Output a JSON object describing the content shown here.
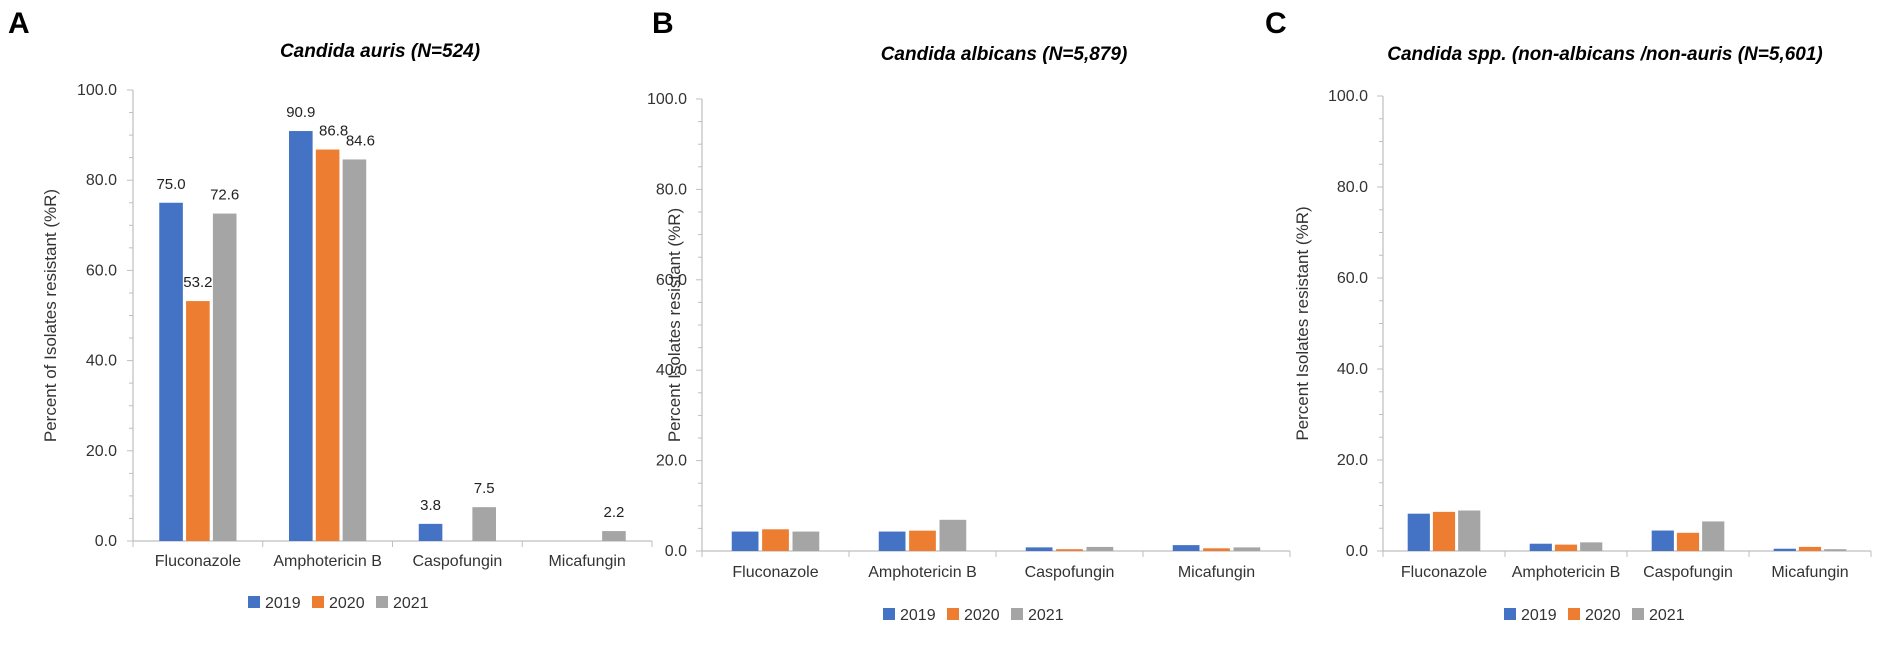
{
  "colors": {
    "2019": "#4472c4",
    "2020": "#ed7d31",
    "2021": "#a5a5a5",
    "axis": "#bfbfbf"
  },
  "chart_data": [
    {
      "panel": "A",
      "type": "bar",
      "title": "Candida auris (N=524)",
      "ylabel": "Percent of Isolates resistant (%R)",
      "xlabel": "",
      "ylim": [
        0,
        100
      ],
      "yticks": [
        "0.0",
        "20.0",
        "40.0",
        "60.0",
        "80.0",
        "100.0"
      ],
      "categories": [
        "Fluconazole",
        "Amphotericin B",
        "Caspofungin",
        "Micafungin"
      ],
      "series": [
        {
          "name": "2019",
          "values": [
            75.0,
            90.9,
            3.8,
            0.0
          ]
        },
        {
          "name": "2020",
          "values": [
            53.2,
            86.8,
            0.0,
            0.0
          ]
        },
        {
          "name": "2021",
          "values": [
            72.6,
            84.6,
            7.5,
            2.2
          ]
        }
      ],
      "data_labels": [
        [
          "75.0",
          "90.9",
          "3.8",
          ""
        ],
        [
          "53.2",
          "86.8",
          "",
          ""
        ],
        [
          "72.6",
          "84.6",
          "7.5",
          "2.2"
        ]
      ],
      "legend": [
        "2019",
        "2020",
        "2021"
      ],
      "legend_position": "bottom",
      "grid": false
    },
    {
      "panel": "B",
      "type": "bar",
      "title": "Candida albicans (N=5,879)",
      "ylabel": "Percent Isolates resistant (%R)",
      "xlabel": "",
      "ylim": [
        0,
        100
      ],
      "yticks": [
        "0.0",
        "20.0",
        "40.0",
        "60.0",
        "80.0",
        "100.0"
      ],
      "categories": [
        "Fluconazole",
        "Amphotericin B",
        "Caspofungin",
        "Micafungin"
      ],
      "series": [
        {
          "name": "2019",
          "values": [
            4.3,
            4.3,
            0.8,
            1.3
          ]
        },
        {
          "name": "2020",
          "values": [
            4.8,
            4.5,
            0.4,
            0.6
          ]
        },
        {
          "name": "2021",
          "values": [
            4.3,
            6.9,
            0.9,
            0.8
          ]
        }
      ],
      "legend": [
        "2019",
        "2020",
        "2021"
      ],
      "legend_position": "bottom",
      "grid": false
    },
    {
      "panel": "C",
      "type": "bar",
      "title": "Candida spp. (non-albicans /non-auris (N=5,601)",
      "ylabel": "Percent Isolates resistant (%R)",
      "xlabel": "",
      "ylim": [
        0,
        100
      ],
      "yticks": [
        "0.0",
        "20.0",
        "40.0",
        "60.0",
        "80.0",
        "100.0"
      ],
      "categories": [
        "Fluconazole",
        "Amphotericin B",
        "Caspofungin",
        "Micafungin"
      ],
      "series": [
        {
          "name": "2019",
          "values": [
            8.2,
            1.6,
            4.5,
            0.5
          ]
        },
        {
          "name": "2020",
          "values": [
            8.6,
            1.4,
            4.0,
            0.9
          ]
        },
        {
          "name": "2021",
          "values": [
            8.9,
            1.9,
            6.5,
            0.4
          ]
        }
      ],
      "legend": [
        "2019",
        "2020",
        "2021"
      ],
      "legend_position": "bottom",
      "grid": false
    }
  ]
}
